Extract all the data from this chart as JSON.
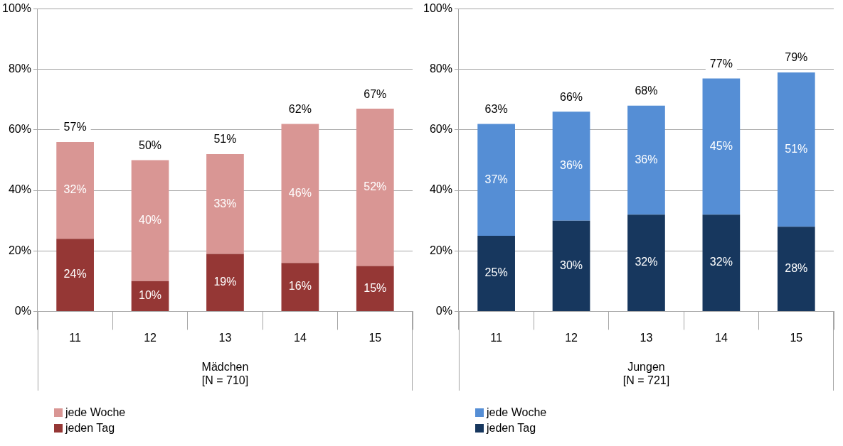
{
  "chart_data": [
    {
      "type": "bar",
      "stacked": true,
      "xlabel": "Mädchen\n[N = 710]",
      "categories": [
        "11",
        "12",
        "13",
        "14",
        "15"
      ],
      "ylim": [
        0,
        100
      ],
      "yticks": [
        {
          "value": 0,
          "label": "0%"
        },
        {
          "value": 20,
          "label": "20%"
        },
        {
          "value": 40,
          "label": "40%"
        },
        {
          "value": 60,
          "label": "60%"
        },
        {
          "value": 80,
          "label": "80%"
        },
        {
          "value": 100,
          "label": "100%"
        }
      ],
      "grid": "y",
      "legend": "bottom left",
      "data_labels": true,
      "series": [
        {
          "name": "jeden Tag",
          "color": "#953735",
          "values": [
            24,
            10,
            19,
            16,
            15
          ],
          "value_labels": [
            "24%",
            "10%",
            "19%",
            "16%",
            "15%"
          ]
        },
        {
          "name": "jede Woche",
          "color": "#d99694",
          "values": [
            32,
            40,
            33,
            46,
            52
          ],
          "value_labels": [
            "32%",
            "40%",
            "33%",
            "46%",
            "52%"
          ]
        }
      ],
      "totals": [
        "57%",
        "50%",
        "51%",
        "62%",
        "67%"
      ]
    },
    {
      "type": "bar",
      "stacked": true,
      "xlabel": "Jungen\n[N = 721]",
      "categories": [
        "11",
        "12",
        "13",
        "14",
        "15"
      ],
      "ylim": [
        0,
        100
      ],
      "yticks": [
        {
          "value": 0,
          "label": "0%"
        },
        {
          "value": 20,
          "label": "20%"
        },
        {
          "value": 40,
          "label": "40%"
        },
        {
          "value": 60,
          "label": "60%"
        },
        {
          "value": 80,
          "label": "80%"
        },
        {
          "value": 100,
          "label": "100%"
        }
      ],
      "grid": "y",
      "legend": "bottom left",
      "data_labels": true,
      "series": [
        {
          "name": "jeden Tag",
          "color": "#17375e",
          "values": [
            25,
            30,
            32,
            32,
            28
          ],
          "value_labels": [
            "25%",
            "30%",
            "32%",
            "32%",
            "28%"
          ]
        },
        {
          "name": "jede Woche",
          "color": "#558ed5",
          "values": [
            37,
            36,
            36,
            45,
            51
          ],
          "value_labels": [
            "37%",
            "36%",
            "36%",
            "45%",
            "51%"
          ]
        }
      ],
      "totals": [
        "63%",
        "66%",
        "68%",
        "77%",
        "79%"
      ]
    }
  ]
}
